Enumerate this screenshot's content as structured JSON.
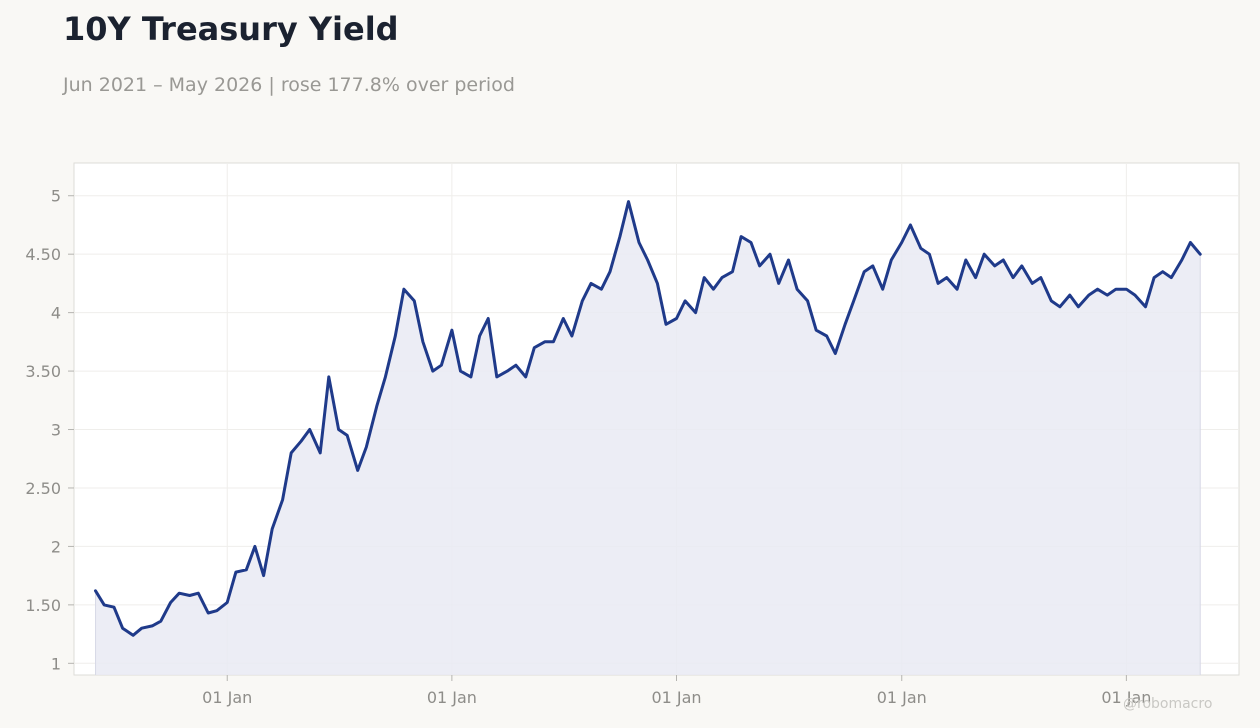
{
  "header": {
    "title": "10Y Treasury Yield",
    "subtitle": "Jun 2021 – May 2026 | rose 177.8% over period"
  },
  "watermark": "@robomacro",
  "colors": {
    "line": "#1f3a8a",
    "fill": "#e9eaf3",
    "plot_background": "#ffffff",
    "page_background": "#f9f8f5"
  },
  "chart_data": {
    "type": "area",
    "title": "10Y Treasury Yield",
    "subtitle": "Jun 2021 – May 2026 | rose 177.8% over period",
    "xlabel": "",
    "ylabel": "",
    "ylim": [
      0.9,
      5.28
    ],
    "xlim": [
      "2021-04-27",
      "2026-07-03"
    ],
    "grid": true,
    "legend": "none",
    "y_ticks": [
      {
        "value": 1,
        "label": "1"
      },
      {
        "value": 1.5,
        "label": "1.50"
      },
      {
        "value": 2,
        "label": "2"
      },
      {
        "value": 2.5,
        "label": "2.50"
      },
      {
        "value": 3,
        "label": "3"
      },
      {
        "value": 3.5,
        "label": "3.50"
      },
      {
        "value": 4,
        "label": "4"
      },
      {
        "value": 4.5,
        "label": "4.50"
      },
      {
        "value": 5,
        "label": "5"
      }
    ],
    "x_ticks": [
      {
        "value": "2022-01-01",
        "label": "01 Jan"
      },
      {
        "value": "2023-01-01",
        "label": "01 Jan"
      },
      {
        "value": "2024-01-01",
        "label": "01 Jan"
      },
      {
        "value": "2025-01-01",
        "label": "01 Jan"
      },
      {
        "value": "2026-01-01",
        "label": "01 Jan"
      }
    ],
    "series": [
      {
        "points": [
          [
            "2021-06-01",
            1.62
          ],
          [
            "2021-06-15",
            1.5
          ],
          [
            "2021-07-01",
            1.48
          ],
          [
            "2021-07-15",
            1.3
          ],
          [
            "2021-08-01",
            1.24
          ],
          [
            "2021-08-15",
            1.3
          ],
          [
            "2021-09-01",
            1.32
          ],
          [
            "2021-09-15",
            1.36
          ],
          [
            "2021-10-01",
            1.52
          ],
          [
            "2021-10-15",
            1.6
          ],
          [
            "2021-11-01",
            1.58
          ],
          [
            "2021-11-15",
            1.6
          ],
          [
            "2021-12-01",
            1.43
          ],
          [
            "2021-12-15",
            1.45
          ],
          [
            "2022-01-01",
            1.52
          ],
          [
            "2022-01-15",
            1.78
          ],
          [
            "2022-02-01",
            1.8
          ],
          [
            "2022-02-15",
            2.0
          ],
          [
            "2022-03-01",
            1.75
          ],
          [
            "2022-03-15",
            2.15
          ],
          [
            "2022-04-01",
            2.4
          ],
          [
            "2022-04-15",
            2.8
          ],
          [
            "2022-05-01",
            2.9
          ],
          [
            "2022-05-15",
            3.0
          ],
          [
            "2022-06-01",
            2.8
          ],
          [
            "2022-06-15",
            3.45
          ],
          [
            "2022-07-01",
            3.0
          ],
          [
            "2022-07-15",
            2.95
          ],
          [
            "2022-08-01",
            2.65
          ],
          [
            "2022-08-15",
            2.85
          ],
          [
            "2022-09-01",
            3.2
          ],
          [
            "2022-09-15",
            3.45
          ],
          [
            "2022-10-01",
            3.8
          ],
          [
            "2022-10-15",
            4.2
          ],
          [
            "2022-11-01",
            4.1
          ],
          [
            "2022-11-15",
            3.75
          ],
          [
            "2022-12-01",
            3.5
          ],
          [
            "2022-12-15",
            3.55
          ],
          [
            "2023-01-01",
            3.85
          ],
          [
            "2023-01-15",
            3.5
          ],
          [
            "2023-02-01",
            3.45
          ],
          [
            "2023-02-15",
            3.8
          ],
          [
            "2023-03-01",
            3.95
          ],
          [
            "2023-03-15",
            3.45
          ],
          [
            "2023-04-01",
            3.5
          ],
          [
            "2023-04-15",
            3.55
          ],
          [
            "2023-05-01",
            3.45
          ],
          [
            "2023-05-15",
            3.7
          ],
          [
            "2023-06-01",
            3.75
          ],
          [
            "2023-06-15",
            3.75
          ],
          [
            "2023-07-01",
            3.95
          ],
          [
            "2023-07-15",
            3.8
          ],
          [
            "2023-08-01",
            4.1
          ],
          [
            "2023-08-15",
            4.25
          ],
          [
            "2023-09-01",
            4.2
          ],
          [
            "2023-09-15",
            4.35
          ],
          [
            "2023-10-01",
            4.65
          ],
          [
            "2023-10-15",
            4.95
          ],
          [
            "2023-11-01",
            4.6
          ],
          [
            "2023-11-15",
            4.45
          ],
          [
            "2023-12-01",
            4.25
          ],
          [
            "2023-12-15",
            3.9
          ],
          [
            "2024-01-01",
            3.95
          ],
          [
            "2024-01-15",
            4.1
          ],
          [
            "2024-02-01",
            4.0
          ],
          [
            "2024-02-15",
            4.3
          ],
          [
            "2024-03-01",
            4.2
          ],
          [
            "2024-03-15",
            4.3
          ],
          [
            "2024-04-01",
            4.35
          ],
          [
            "2024-04-15",
            4.65
          ],
          [
            "2024-05-01",
            4.6
          ],
          [
            "2024-05-15",
            4.4
          ],
          [
            "2024-06-01",
            4.5
          ],
          [
            "2024-06-15",
            4.25
          ],
          [
            "2024-07-01",
            4.45
          ],
          [
            "2024-07-15",
            4.2
          ],
          [
            "2024-08-01",
            4.1
          ],
          [
            "2024-08-15",
            3.85
          ],
          [
            "2024-09-01",
            3.8
          ],
          [
            "2024-09-15",
            3.65
          ],
          [
            "2024-10-01",
            3.9
          ],
          [
            "2024-10-15",
            4.1
          ],
          [
            "2024-11-01",
            4.35
          ],
          [
            "2024-11-15",
            4.4
          ],
          [
            "2024-12-01",
            4.2
          ],
          [
            "2024-12-15",
            4.45
          ],
          [
            "2025-01-01",
            4.6
          ],
          [
            "2025-01-15",
            4.75
          ],
          [
            "2025-02-01",
            4.55
          ],
          [
            "2025-02-15",
            4.5
          ],
          [
            "2025-03-01",
            4.25
          ],
          [
            "2025-03-15",
            4.3
          ],
          [
            "2025-04-01",
            4.2
          ],
          [
            "2025-04-15",
            4.45
          ],
          [
            "2025-05-01",
            4.3
          ],
          [
            "2025-05-15",
            4.5
          ],
          [
            "2025-06-01",
            4.4
          ],
          [
            "2025-06-15",
            4.45
          ],
          [
            "2025-07-01",
            4.3
          ],
          [
            "2025-07-15",
            4.4
          ],
          [
            "2025-08-01",
            4.25
          ],
          [
            "2025-08-15",
            4.3
          ],
          [
            "2025-09-01",
            4.1
          ],
          [
            "2025-09-15",
            4.05
          ],
          [
            "2025-10-01",
            4.15
          ],
          [
            "2025-10-15",
            4.05
          ],
          [
            "2025-11-01",
            4.15
          ],
          [
            "2025-11-15",
            4.2
          ],
          [
            "2025-12-01",
            4.15
          ],
          [
            "2025-12-15",
            4.2
          ],
          [
            "2026-01-01",
            4.2
          ],
          [
            "2026-01-15",
            4.15
          ],
          [
            "2026-02-01",
            4.05
          ],
          [
            "2026-02-15",
            4.3
          ],
          [
            "2026-03-01",
            4.35
          ],
          [
            "2026-03-15",
            4.3
          ],
          [
            "2026-04-01",
            4.45
          ],
          [
            "2026-04-15",
            4.6
          ],
          [
            "2026-05-01",
            4.5
          ]
        ]
      }
    ]
  }
}
